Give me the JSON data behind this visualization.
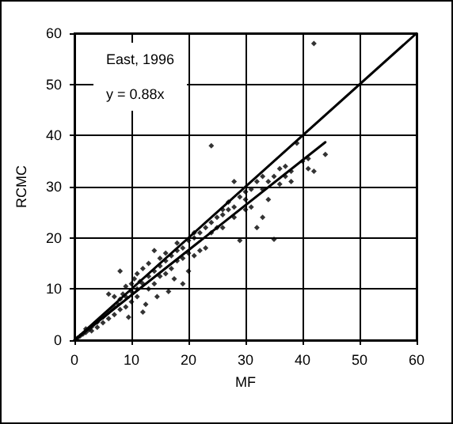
{
  "chart_data": {
    "type": "scatter",
    "xlabel": "MF",
    "ylabel": "RCMC",
    "annotations": [
      "East, 1996",
      "y = 0.88x"
    ],
    "xlim": [
      0,
      60
    ],
    "ylim": [
      0,
      60
    ],
    "xticks": [
      0,
      10,
      20,
      30,
      40,
      50,
      60
    ],
    "yticks": [
      0,
      10,
      20,
      30,
      40,
      50,
      60
    ],
    "grid": true,
    "marker": "diamond",
    "series": [
      {
        "color": "#000000",
        "x": [
          0.5,
          1,
          1.5,
          2,
          2,
          2.5,
          3,
          3,
          3.5,
          4,
          4,
          4.5,
          5,
          5,
          5.5,
          6,
          6,
          6,
          6.5,
          7,
          7,
          7,
          7.5,
          8,
          8,
          8,
          8.5,
          9,
          9,
          9,
          9.5,
          10,
          10,
          10,
          10.5,
          11,
          11,
          11,
          11.5,
          12,
          12,
          12,
          12.5,
          13,
          13,
          13,
          14,
          14,
          14,
          14.5,
          15,
          15,
          15,
          16,
          16,
          16,
          16.5,
          17,
          17,
          17.5,
          18,
          18,
          18,
          19,
          19,
          19,
          20,
          20,
          20,
          21,
          21,
          21,
          22,
          22,
          23,
          23,
          24,
          24,
          25,
          25,
          26,
          26,
          26,
          27,
          27,
          28,
          28,
          28,
          29,
          29,
          30,
          30,
          30,
          31,
          31,
          32,
          32,
          33,
          33,
          33,
          34,
          34,
          35,
          35,
          36,
          36,
          37,
          37,
          38,
          38,
          39,
          40,
          41,
          41,
          42,
          44,
          24,
          42
        ],
        "values": [
          0.4,
          0.8,
          1.2,
          1.5,
          2.2,
          2,
          2.6,
          1.8,
          3.2,
          3.5,
          2.5,
          4.2,
          4.5,
          3.4,
          5,
          5.5,
          4.2,
          9,
          6,
          6.5,
          5,
          8.5,
          7.2,
          8,
          6,
          13.5,
          9,
          8.5,
          10.5,
          6.5,
          4.5,
          9.5,
          11,
          7.5,
          12,
          10,
          8.5,
          13,
          11.5,
          11,
          14,
          5.5,
          7,
          12.5,
          15,
          10,
          13.5,
          17.5,
          11,
          8.5,
          14.5,
          16,
          12.5,
          15.5,
          17,
          13,
          9.5,
          16.5,
          14,
          12,
          17.5,
          19,
          15.5,
          18,
          11,
          16,
          19.5,
          17,
          13.5,
          20,
          16.5,
          21,
          21,
          17.5,
          22,
          18,
          23,
          21,
          24,
          22,
          24.5,
          25.5,
          22,
          25.5,
          27,
          26,
          24,
          31,
          28,
          19.5,
          27.5,
          29,
          25.5,
          29.5,
          26,
          31,
          22,
          24,
          32,
          29.5,
          31,
          27.5,
          19.7,
          32,
          33.5,
          30.5,
          32,
          34,
          31,
          33,
          38.5,
          35,
          33.5,
          35.5,
          33,
          36.3,
          38,
          58
        ]
      },
      {
        "type": "line",
        "color": "#000000",
        "marker": "none",
        "line_style": "solid",
        "x": [
          0,
          60
        ],
        "values": [
          0,
          60
        ]
      },
      {
        "type": "line",
        "color": "#000000",
        "marker": "none",
        "line_style": "solid",
        "x": [
          0,
          44
        ],
        "values": [
          0,
          38.7
        ]
      }
    ]
  }
}
